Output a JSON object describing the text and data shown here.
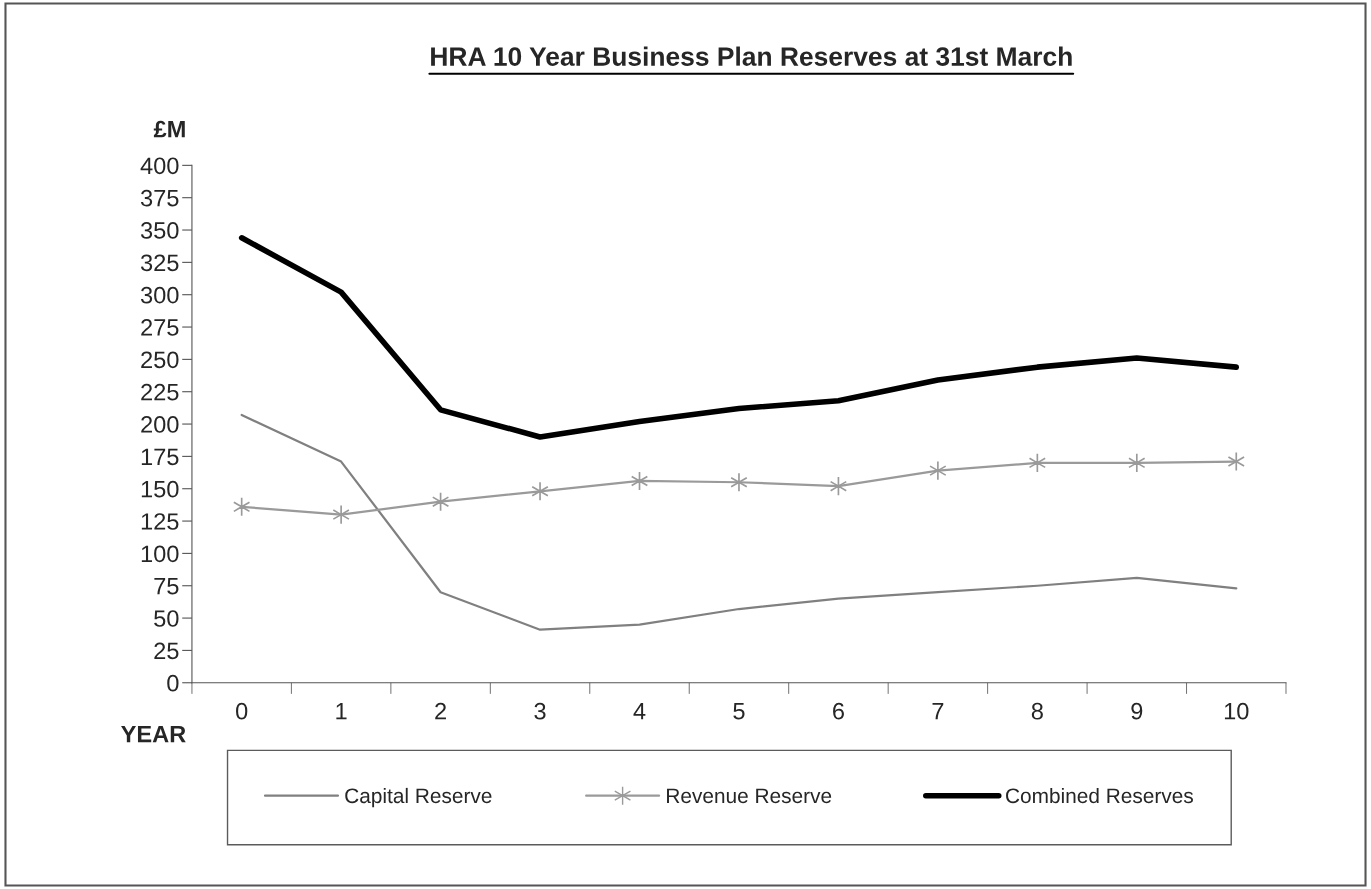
{
  "chart_data": {
    "type": "line",
    "title": "HRA 10 Year Business Plan Reserves at 31st March",
    "xlabel": "YEAR",
    "ylabel": "£M",
    "categories": [
      "0",
      "1",
      "2",
      "3",
      "4",
      "5",
      "6",
      "7",
      "8",
      "9",
      "10"
    ],
    "series": [
      {
        "name": "Capital Reserve",
        "color": "#808080",
        "marker": "none",
        "values": [
          207,
          171,
          70,
          41,
          45,
          57,
          65,
          70,
          75,
          81,
          73
        ]
      },
      {
        "name": "Revenue Reserve",
        "color": "#9a9a9a",
        "marker": "cross",
        "values": [
          136,
          130,
          140,
          148,
          156,
          155,
          152,
          164,
          170,
          170,
          171
        ]
      },
      {
        "name": "Combined Reserves",
        "color": "#000000",
        "marker": "none",
        "values": [
          344,
          302,
          211,
          190,
          202,
          212,
          218,
          234,
          244,
          251,
          244
        ]
      }
    ],
    "ylim": [
      0,
      400
    ],
    "yticks": [
      0,
      25,
      50,
      75,
      100,
      125,
      150,
      175,
      200,
      225,
      250,
      275,
      300,
      325,
      350,
      375,
      400
    ],
    "grid": false,
    "legend": "bottom",
    "line_style": "solid"
  }
}
